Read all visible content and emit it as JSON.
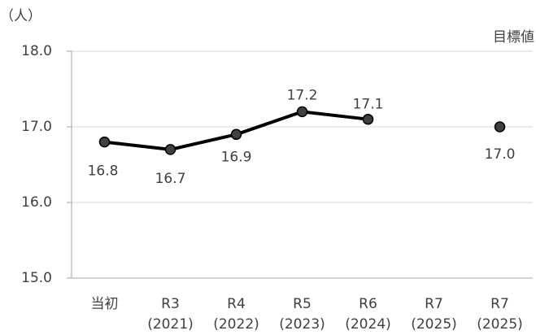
{
  "chart_data": {
    "type": "line",
    "unit_label": "（人）",
    "annotation": "目標値",
    "categories": [
      "当初",
      "R3\n(2021)",
      "R4\n(2022)",
      "R5\n(2023)",
      "R6\n(2024)",
      "R7\n(2025)",
      "R7\n(2025)"
    ],
    "series": [
      {
        "color": "#000000",
        "marker_color": "#404040",
        "values": [
          16.8,
          16.7,
          16.9,
          17.2,
          17.1,
          null,
          17.0
        ],
        "value_labels": [
          "16.8",
          "16.7",
          "16.9",
          "17.2",
          "17.1",
          null,
          "17.0"
        ]
      }
    ],
    "ylim": [
      15,
      18
    ],
    "yticks": [
      {
        "value": 15,
        "label": "15.0"
      },
      {
        "value": 16,
        "label": "16.0"
      },
      {
        "value": 17,
        "label": "17.0"
      },
      {
        "value": 18,
        "label": "18.0"
      }
    ],
    "grid": true
  }
}
